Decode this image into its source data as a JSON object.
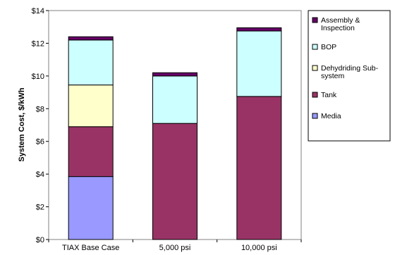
{
  "chart_data": {
    "type": "bar",
    "stacked": true,
    "categories": [
      "TIAX Base Case",
      "5,000 psi",
      "10,000 psi"
    ],
    "ylabel": "System Cost, $/kWh",
    "ylim": [
      0,
      14
    ],
    "yticks": [
      "$0",
      "$2",
      "$4",
      "$6",
      "$8",
      "$10",
      "$12",
      "$14"
    ],
    "grid": false,
    "legend_position": "right",
    "series": [
      {
        "name": "Media",
        "values": [
          3.85,
          0,
          0
        ],
        "color": "#9999ff"
      },
      {
        "name": "Tank",
        "values": [
          3.05,
          7.1,
          8.75
        ],
        "color": "#993366"
      },
      {
        "name": "Dehydriding Sub-system",
        "values": [
          2.55,
          0,
          0
        ],
        "color": "#ffffcc"
      },
      {
        "name": "BOP",
        "values": [
          2.75,
          2.9,
          4.0
        ],
        "color": "#ccffff"
      },
      {
        "name": "Assembly & Inspection",
        "values": [
          0.2,
          0.2,
          0.2
        ],
        "color": "#660066"
      }
    ],
    "legend": [
      {
        "lines": [
          "Assembly &",
          "Inspection"
        ],
        "color": "#660066"
      },
      {
        "lines": [
          "BOP"
        ],
        "color": "#ccffff"
      },
      {
        "lines": [
          "Dehydriding Sub-",
          "system"
        ],
        "color": "#ffffcc"
      },
      {
        "lines": [
          "Tank"
        ],
        "color": "#993366"
      },
      {
        "lines": [
          "Media"
        ],
        "color": "#9999ff"
      }
    ]
  }
}
